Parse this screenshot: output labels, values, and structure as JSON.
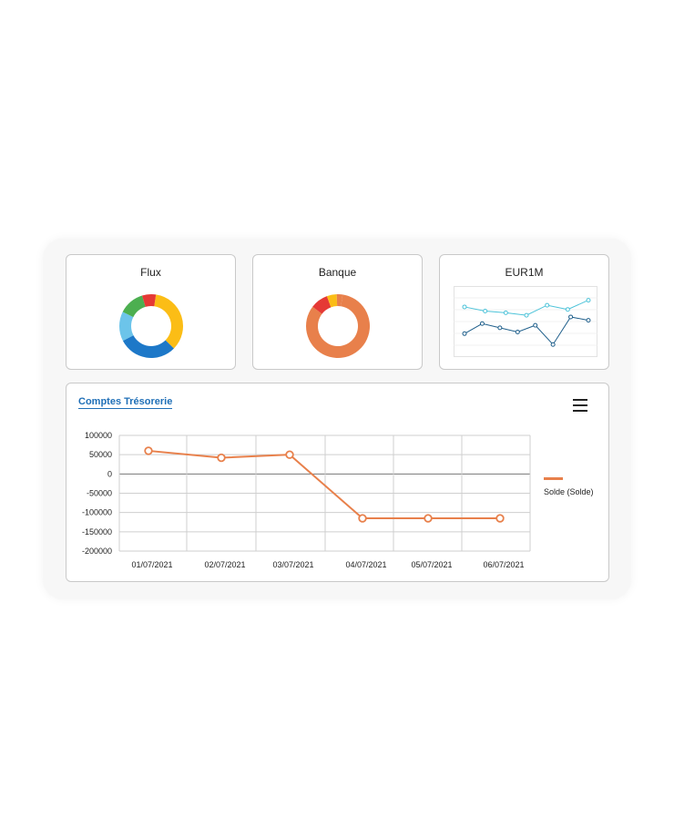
{
  "cards": {
    "flux": {
      "title": "Flux",
      "segments": [
        {
          "color": "#fbbd16",
          "value": 35
        },
        {
          "color": "#1d78c8",
          "value": 30
        },
        {
          "color": "#6cc4ea",
          "value": 15
        },
        {
          "color": "#4caf50",
          "value": 13
        },
        {
          "color": "#e53935",
          "value": 7
        }
      ]
    },
    "banque": {
      "title": "Banque",
      "segments": [
        {
          "color": "#e8804b",
          "value": 83
        },
        {
          "color": "#e53935",
          "value": 9
        },
        {
          "color": "#fbbd16",
          "value": 5
        },
        {
          "color": "#e8804b",
          "value": 3
        }
      ]
    },
    "eur1m": {
      "title": "EUR1M",
      "series": [
        {
          "color": "#4cc3d9",
          "values": [
            70,
            65,
            63,
            60,
            72,
            67,
            78
          ]
        },
        {
          "color": "#1f5f8b",
          "values": [
            38,
            50,
            45,
            40,
            48,
            25,
            58,
            54
          ]
        }
      ]
    }
  },
  "main": {
    "title": "Comptes Trésorerie",
    "menu_icon": "hamburger-menu-icon",
    "accent": "#e8804b",
    "legend": "Solde (Solde)"
  },
  "chart_data": {
    "type": "line",
    "x": [
      "01/07/2021",
      "02/07/2021",
      "03/07/2021",
      "04/07/2021",
      "05/07/2021",
      "06/07/2021"
    ],
    "series": [
      {
        "name": "Solde (Solde)",
        "values": [
          60000,
          42000,
          50000,
          -115000,
          -115000,
          -115000
        ]
      }
    ],
    "ylim": [
      -200000,
      100000
    ],
    "yticks": [
      "100000",
      "50000",
      "0",
      "-50000",
      "-100000",
      "-150000",
      "-200000"
    ],
    "grid": true,
    "legend_position": "right"
  }
}
